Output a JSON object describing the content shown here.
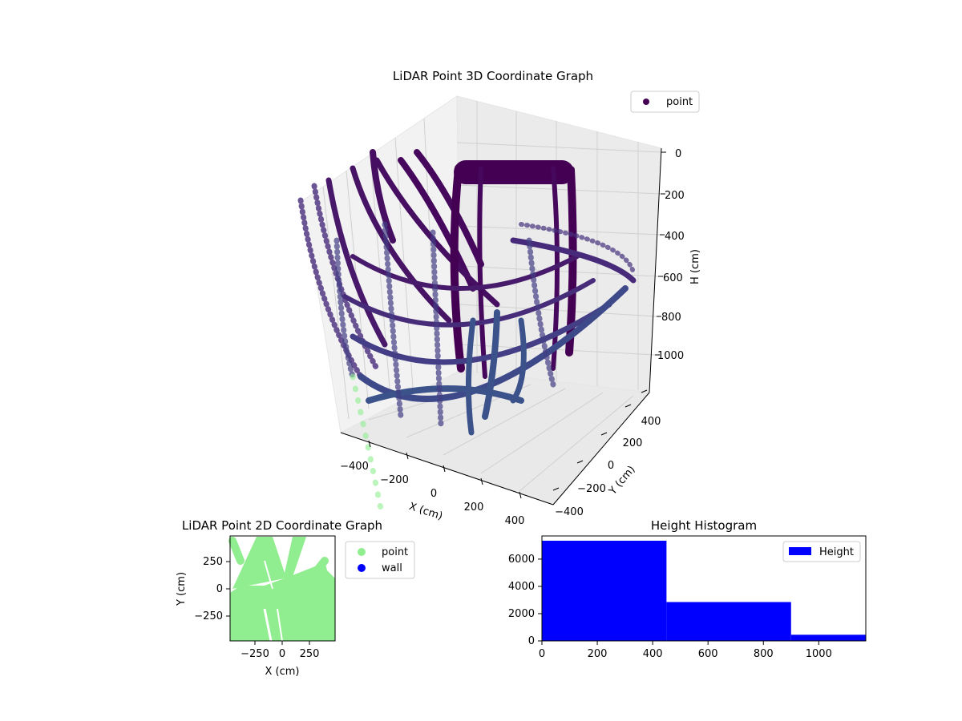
{
  "chart_data": [
    {
      "type": "scatter",
      "projection": "3d",
      "title": "LiDAR Point 3D Coordinate Graph",
      "xlabel": "X (cm)",
      "ylabel": "Y (cm)",
      "zlabel": "H (cm)",
      "xticks": [
        "−400",
        "−200",
        "0",
        "200",
        "400"
      ],
      "yticks": [
        "−400",
        "−200",
        "0",
        "200",
        "400"
      ],
      "zticks": [
        "0",
        "200",
        "400",
        "600",
        "800",
        "1000"
      ],
      "xlim": [
        -480,
        480
      ],
      "ylim": [
        -480,
        480
      ],
      "zlim": [
        0,
        1170
      ],
      "z_axis_inverted": true,
      "legend": {
        "entries": [
          "point"
        ],
        "location": "upper right"
      },
      "colormap": "viridis",
      "series": [
        {
          "name": "point",
          "color": "#440154",
          "description_of_shape": "curved vertical arcs forming a cylindrical cage, points colored by height"
        }
      ],
      "grid": true
    },
    {
      "type": "scatter",
      "title": "LiDAR Point 2D Coordinate Graph",
      "xlabel": "X (cm)",
      "ylabel": "Y (cm)",
      "xticks": [
        "−250",
        "0",
        "250"
      ],
      "yticks": [
        "−250",
        "0",
        "250"
      ],
      "xlim": [
        -480,
        480
      ],
      "ylim": [
        -480,
        480
      ],
      "legend": {
        "entries": [
          "point",
          "wall"
        ],
        "location": "outside upper right"
      },
      "series": [
        {
          "name": "point",
          "color": "#90ee90"
        },
        {
          "name": "wall",
          "color": "#0000ff"
        }
      ],
      "grid": false
    },
    {
      "type": "bar",
      "title": "Height Histogram",
      "bins": [
        {
          "x0": 0,
          "x1": 450,
          "count": 7350
        },
        {
          "x0": 450,
          "x1": 900,
          "count": 2850
        },
        {
          "x0": 900,
          "x1": 1170,
          "count": 450
        }
      ],
      "xticks": [
        "0",
        "200",
        "400",
        "600",
        "800",
        "1000"
      ],
      "yticks": [
        "0",
        "2000",
        "4000",
        "6000"
      ],
      "xlim": [
        0,
        1170
      ],
      "ylim": [
        0,
        7700
      ],
      "legend": {
        "entries": [
          "Height"
        ],
        "location": "upper right"
      },
      "series": [
        {
          "name": "Height",
          "color": "#0000ff"
        }
      ],
      "grid": false
    }
  ]
}
